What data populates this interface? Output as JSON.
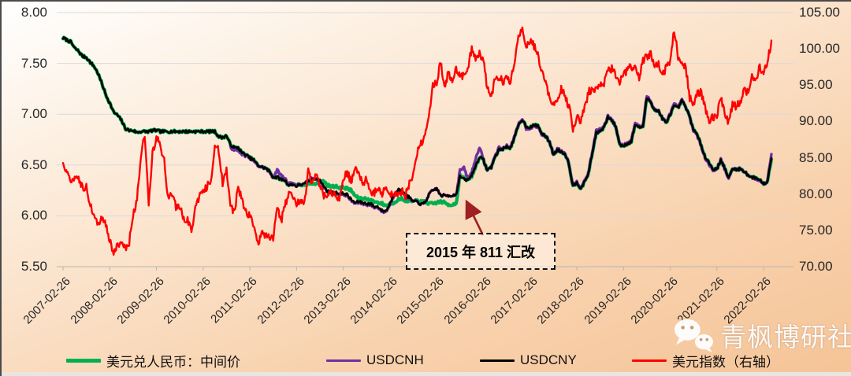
{
  "chart_data": {
    "type": "line",
    "title": "",
    "x_tick_labels": [
      "2007-02-26",
      "2008-02-26",
      "2009-02-26",
      "2010-02-26",
      "2011-02-26",
      "2012-02-26",
      "2013-02-26",
      "2014-02-26",
      "2015-02-26",
      "2016-02-26",
      "2017-02-26",
      "2018-02-26",
      "2019-02-26",
      "2020-02-26",
      "2021-02-26",
      "2022-02-26"
    ],
    "x_start": "2007-02",
    "x_end": "2022-04",
    "x_resolution": "monthly",
    "grid": "horizontal",
    "left_axis": {
      "min": 5.5,
      "max": 8.0,
      "tick_labels": [
        "8.00",
        "7.50",
        "7.00",
        "6.50",
        "6.00",
        "5.50"
      ]
    },
    "right_axis": {
      "min": 70,
      "max": 105,
      "tick_labels": [
        "105.00",
        "100.00",
        "95.00",
        "90.00",
        "85.00",
        "80.00",
        "75.00",
        "70.00"
      ]
    },
    "annotation": {
      "text": "2015 年 811 汇改",
      "arrow_color": "#9e2020"
    },
    "watermark": "青枫博研社",
    "series": [
      {
        "name": "美元兑人民币：中间价",
        "color": "#00B050",
        "axis": "left",
        "values": [
          7.75,
          7.73,
          7.71,
          7.65,
          7.62,
          7.57,
          7.56,
          7.51,
          7.47,
          7.4,
          7.3,
          7.19,
          7.11,
          7.02,
          6.99,
          6.94,
          6.86,
          6.84,
          6.84,
          6.82,
          6.83,
          6.83,
          6.83,
          6.84,
          6.84,
          6.83,
          6.83,
          6.83,
          6.83,
          6.83,
          6.83,
          6.83,
          6.83,
          6.83,
          6.83,
          6.83,
          6.83,
          6.83,
          6.83,
          6.83,
          6.78,
          6.77,
          6.79,
          6.7,
          6.67,
          6.67,
          6.62,
          6.6,
          6.57,
          6.55,
          6.5,
          6.48,
          6.47,
          6.44,
          6.38,
          6.38,
          6.36,
          6.35,
          6.3,
          6.32,
          6.3,
          6.31,
          6.29,
          6.32,
          6.32,
          6.32,
          6.34,
          6.34,
          6.3,
          6.29,
          6.29,
          6.28,
          6.28,
          6.27,
          6.25,
          6.2,
          6.17,
          6.17,
          6.17,
          6.15,
          6.14,
          6.13,
          6.12,
          6.1,
          6.12,
          6.13,
          6.16,
          6.17,
          6.15,
          6.15,
          6.14,
          6.15,
          6.14,
          6.14,
          6.12,
          6.12,
          6.13,
          6.14,
          6.13,
          6.11,
          6.11,
          6.12,
          6.4,
          6.37,
          6.35,
          6.39,
          6.48,
          6.58,
          6.55,
          6.45,
          6.48,
          6.58,
          6.65,
          6.66,
          6.68,
          6.67,
          6.77,
          6.89,
          6.95,
          6.88,
          6.87,
          6.89,
          6.89,
          6.81,
          6.78,
          6.73,
          6.6,
          6.65,
          6.63,
          6.61,
          6.51,
          6.29,
          6.33,
          6.27,
          6.33,
          6.42,
          6.62,
          6.82,
          6.83,
          6.87,
          6.97,
          6.94,
          6.88,
          6.7,
          6.69,
          6.71,
          6.73,
          6.9,
          6.87,
          6.88,
          7.16,
          7.12,
          7.04,
          7.03,
          6.96,
          6.91,
          7.0,
          7.08,
          7.06,
          7.13,
          7.07,
          6.97,
          6.85,
          6.79,
          6.69,
          6.58,
          6.52,
          6.46,
          6.46,
          6.55,
          6.47,
          6.37,
          6.46,
          6.46,
          6.46,
          6.44,
          6.4,
          6.38,
          6.37,
          6.36,
          6.31,
          6.34,
          6.57
        ]
      },
      {
        "name": "USDCNH",
        "color": "#7030A0",
        "axis": "left",
        "values": [
          null,
          null,
          null,
          null,
          null,
          null,
          null,
          null,
          null,
          null,
          null,
          null,
          null,
          null,
          null,
          null,
          null,
          null,
          null,
          null,
          null,
          null,
          null,
          null,
          null,
          null,
          null,
          null,
          null,
          null,
          null,
          null,
          null,
          null,
          null,
          null,
          null,
          null,
          null,
          null,
          null,
          null,
          null,
          6.68,
          6.64,
          6.65,
          6.6,
          6.59,
          6.57,
          6.54,
          6.49,
          6.48,
          6.47,
          6.43,
          6.38,
          6.45,
          6.4,
          6.37,
          6.32,
          6.32,
          6.3,
          6.31,
          6.31,
          6.35,
          6.37,
          6.37,
          6.34,
          6.28,
          6.24,
          6.23,
          6.22,
          6.21,
          6.21,
          6.2,
          6.15,
          6.12,
          6.13,
          6.12,
          6.11,
          6.11,
          6.08,
          6.08,
          6.04,
          6.04,
          6.11,
          6.2,
          6.25,
          6.24,
          6.2,
          6.17,
          6.14,
          6.14,
          6.11,
          6.13,
          6.21,
          6.25,
          6.27,
          6.2,
          6.2,
          6.2,
          6.2,
          6.21,
          6.45,
          6.47,
          6.37,
          6.43,
          6.56,
          6.68,
          6.55,
          6.45,
          6.48,
          6.59,
          6.67,
          6.66,
          6.69,
          6.68,
          6.78,
          6.9,
          6.96,
          6.86,
          6.86,
          6.88,
          6.88,
          6.8,
          6.78,
          6.73,
          6.6,
          6.66,
          6.64,
          6.62,
          6.51,
          6.3,
          6.34,
          6.28,
          6.34,
          6.43,
          6.63,
          6.84,
          6.85,
          6.88,
          6.98,
          6.95,
          6.88,
          6.71,
          6.7,
          6.72,
          6.74,
          6.92,
          6.88,
          6.89,
          7.18,
          7.13,
          7.05,
          7.03,
          6.96,
          6.92,
          7.01,
          7.1,
          7.07,
          7.14,
          7.07,
          6.97,
          6.84,
          6.78,
          6.68,
          6.57,
          6.5,
          6.45,
          6.46,
          6.56,
          6.46,
          6.36,
          6.46,
          6.46,
          6.46,
          6.44,
          6.4,
          6.38,
          6.36,
          6.35,
          6.31,
          6.35,
          6.62
        ]
      },
      {
        "name": "USDCNY",
        "color": "#000000",
        "axis": "left",
        "values": [
          7.75,
          7.73,
          7.71,
          7.65,
          7.62,
          7.57,
          7.56,
          7.51,
          7.47,
          7.4,
          7.3,
          7.19,
          7.11,
          7.02,
          6.99,
          6.94,
          6.86,
          6.84,
          6.84,
          6.82,
          6.83,
          6.83,
          6.83,
          6.84,
          6.84,
          6.83,
          6.83,
          6.83,
          6.83,
          6.83,
          6.83,
          6.83,
          6.83,
          6.83,
          6.83,
          6.83,
          6.83,
          6.83,
          6.83,
          6.83,
          6.78,
          6.77,
          6.79,
          6.7,
          6.67,
          6.67,
          6.62,
          6.6,
          6.57,
          6.55,
          6.5,
          6.48,
          6.47,
          6.44,
          6.38,
          6.38,
          6.36,
          6.35,
          6.3,
          6.31,
          6.29,
          6.31,
          6.31,
          6.34,
          6.36,
          6.37,
          6.35,
          6.29,
          6.24,
          6.23,
          6.23,
          6.22,
          6.22,
          6.21,
          6.16,
          6.13,
          6.14,
          6.13,
          6.12,
          6.12,
          6.09,
          6.09,
          6.05,
          6.05,
          6.12,
          6.21,
          6.26,
          6.25,
          6.21,
          6.18,
          6.14,
          6.14,
          6.11,
          6.13,
          6.21,
          6.25,
          6.27,
          6.2,
          6.2,
          6.2,
          6.2,
          6.21,
          6.39,
          6.36,
          6.35,
          6.4,
          6.49,
          6.58,
          6.55,
          6.45,
          6.48,
          6.58,
          6.65,
          6.66,
          6.68,
          6.67,
          6.77,
          6.89,
          6.95,
          6.88,
          6.87,
          6.89,
          6.89,
          6.81,
          6.78,
          6.73,
          6.6,
          6.65,
          6.63,
          6.61,
          6.51,
          6.29,
          6.33,
          6.27,
          6.33,
          6.42,
          6.62,
          6.82,
          6.83,
          6.87,
          6.97,
          6.94,
          6.88,
          6.7,
          6.69,
          6.71,
          6.73,
          6.9,
          6.87,
          6.88,
          7.16,
          7.12,
          7.04,
          7.03,
          6.96,
          6.91,
          7.0,
          7.08,
          7.06,
          7.13,
          7.07,
          6.97,
          6.85,
          6.79,
          6.69,
          6.58,
          6.52,
          6.46,
          6.46,
          6.55,
          6.47,
          6.37,
          6.46,
          6.46,
          6.46,
          6.44,
          6.4,
          6.38,
          6.37,
          6.36,
          6.31,
          6.34,
          6.58
        ]
      },
      {
        "name": "美元指数（右轴）",
        "color": "#FF0000",
        "axis": "right",
        "values": [
          84.0,
          83.2,
          81.7,
          82.2,
          82.4,
          80.7,
          80.9,
          78.5,
          77.0,
          75.4,
          76.7,
          75.7,
          73.7,
          71.8,
          72.8,
          72.9,
          72.5,
          73.4,
          77.2,
          79.1,
          85.5,
          88.0,
          78.8,
          85.5,
          88.0,
          86.5,
          84.6,
          79.3,
          80.0,
          78.3,
          78.1,
          76.7,
          76.4,
          74.9,
          77.9,
          79.5,
          80.4,
          81.1,
          81.9,
          86.6,
          86.0,
          81.5,
          83.2,
          78.7,
          77.3,
          81.2,
          79.0,
          77.7,
          76.9,
          75.9,
          73.0,
          74.6,
          74.3,
          73.9,
          74.1,
          78.6,
          76.2,
          78.4,
          80.2,
          79.3,
          78.7,
          79.0,
          78.8,
          83.0,
          81.6,
          82.8,
          81.2,
          79.9,
          80.0,
          80.2,
          79.8,
          79.2,
          81.9,
          83.0,
          81.7,
          83.4,
          83.1,
          81.5,
          82.1,
          80.2,
          80.2,
          80.7,
          80.0,
          81.3,
          79.7,
          80.2,
          79.8,
          80.4,
          79.8,
          81.5,
          82.7,
          85.9,
          87.0,
          88.3,
          90.3,
          94.8,
          95.3,
          98.4,
          94.6,
          96.9,
          95.5,
          97.3,
          96.0,
          96.4,
          97.0,
          100.2,
          98.7,
          99.6,
          98.2,
          94.6,
          93.1,
          95.9,
          96.1,
          95.5,
          96.0,
          95.5,
          98.4,
          101.5,
          102.5,
          100.2,
          101.1,
          100.4,
          99.0,
          96.9,
          95.6,
          92.9,
          92.7,
          93.1,
          94.6,
          93.3,
          92.1,
          89.1,
          90.6,
          90.0,
          91.8,
          94.0,
          94.5,
          94.6,
          95.1,
          95.1,
          97.1,
          97.3,
          96.2,
          95.6,
          96.2,
          97.3,
          97.5,
          97.8,
          96.1,
          98.5,
          98.9,
          99.4,
          97.3,
          98.3,
          96.4,
          97.4,
          98.1,
          102.8,
          99.0,
          98.3,
          97.4,
          93.3,
          92.1,
          93.9,
          94.0,
          91.8,
          89.9,
          90.6,
          90.9,
          93.2,
          91.3,
          89.8,
          92.4,
          92.1,
          92.6,
          94.2,
          94.1,
          96.5,
          95.7,
          97.5,
          96.5,
          98.5,
          101.0
        ]
      }
    ]
  },
  "legend": {
    "items": [
      {
        "label": "美元兑人民币：中间价",
        "color": "#00B050"
      },
      {
        "label": "USDCNH",
        "color": "#7030A0"
      },
      {
        "label": "USDCNY",
        "color": "#000000"
      },
      {
        "label": "美元指数（右轴）",
        "color": "#FF0000"
      }
    ]
  },
  "colors": {
    "grid": "#dadada",
    "axis": "#b5b5b5",
    "tick_text": "#262626"
  }
}
